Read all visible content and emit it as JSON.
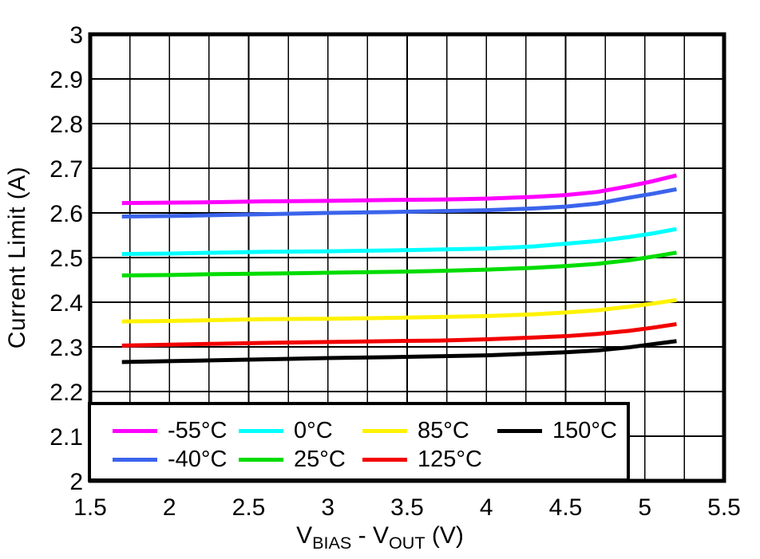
{
  "chart_data": {
    "type": "line",
    "title": "",
    "ylabel": "Current Limit (A)",
    "xlabel_parts": {
      "v1": "V",
      "sub1": "BIAS",
      "dash": " - ",
      "v2": "V",
      "sub2": "OUT",
      "unit": " (V)"
    },
    "xlim": [
      1.5,
      5.5
    ],
    "ylim": [
      2,
      3
    ],
    "x_grid_step": 0.25,
    "y_grid_step": 0.1,
    "grid": true,
    "legend_position": "bottom-left-inside",
    "xtick_values": [
      1.5,
      2,
      2.5,
      3,
      3.5,
      4,
      4.5,
      5,
      5.5
    ],
    "xtick_labels": [
      "1.5",
      "2",
      "2.5",
      "3",
      "3.5",
      "4",
      "4.5",
      "5",
      "5.5"
    ],
    "ytick_values": [
      3,
      2.9,
      2.8,
      2.7,
      2.6,
      2.5,
      2.4,
      2.3,
      2.2,
      2.1,
      2
    ],
    "ytick_labels": [
      "3",
      "2.9",
      "2.8",
      "2.7",
      "2.6",
      "2.5",
      "2.4",
      "2.3",
      "2.2",
      "2.1",
      "2"
    ],
    "x": [
      1.7,
      2.0,
      2.3,
      2.6,
      3.0,
      3.4,
      3.7,
      4.0,
      4.3,
      4.5,
      4.7,
      4.9,
      5.05,
      5.2
    ],
    "series": [
      {
        "name": "-55°C",
        "color": "#FF00FF",
        "values": [
          2.622,
          2.623,
          2.624,
          2.626,
          2.627,
          2.629,
          2.63,
          2.632,
          2.636,
          2.64,
          2.647,
          2.66,
          2.671,
          2.684
        ]
      },
      {
        "name": "-40°C",
        "color": "#3B64EC",
        "values": [
          2.592,
          2.593,
          2.595,
          2.597,
          2.6,
          2.602,
          2.604,
          2.606,
          2.61,
          2.614,
          2.621,
          2.634,
          2.643,
          2.653
        ]
      },
      {
        "name": "0°C",
        "color": "#00FFFF",
        "values": [
          2.508,
          2.509,
          2.511,
          2.513,
          2.514,
          2.516,
          2.518,
          2.52,
          2.525,
          2.531,
          2.537,
          2.546,
          2.554,
          2.564
        ]
      },
      {
        "name": "25°C",
        "color": "#00DC00",
        "values": [
          2.46,
          2.461,
          2.463,
          2.464,
          2.466,
          2.468,
          2.47,
          2.473,
          2.477,
          2.481,
          2.486,
          2.494,
          2.502,
          2.511
        ]
      },
      {
        "name": "85°C",
        "color": "#FFF200",
        "values": [
          2.357,
          2.358,
          2.36,
          2.362,
          2.363,
          2.365,
          2.367,
          2.369,
          2.373,
          2.377,
          2.382,
          2.39,
          2.397,
          2.405
        ]
      },
      {
        "name": "125°C",
        "color": "#F20000",
        "values": [
          2.303,
          2.305,
          2.307,
          2.309,
          2.311,
          2.313,
          2.314,
          2.317,
          2.321,
          2.324,
          2.329,
          2.336,
          2.343,
          2.351
        ]
      },
      {
        "name": "150°C",
        "color": "#000000",
        "values": [
          2.266,
          2.268,
          2.27,
          2.272,
          2.275,
          2.277,
          2.279,
          2.281,
          2.285,
          2.288,
          2.292,
          2.299,
          2.306,
          2.313
        ]
      }
    ]
  },
  "style": {
    "background": "#FFFFFF",
    "axis_color": "#000000",
    "grid_color": "#000000"
  }
}
